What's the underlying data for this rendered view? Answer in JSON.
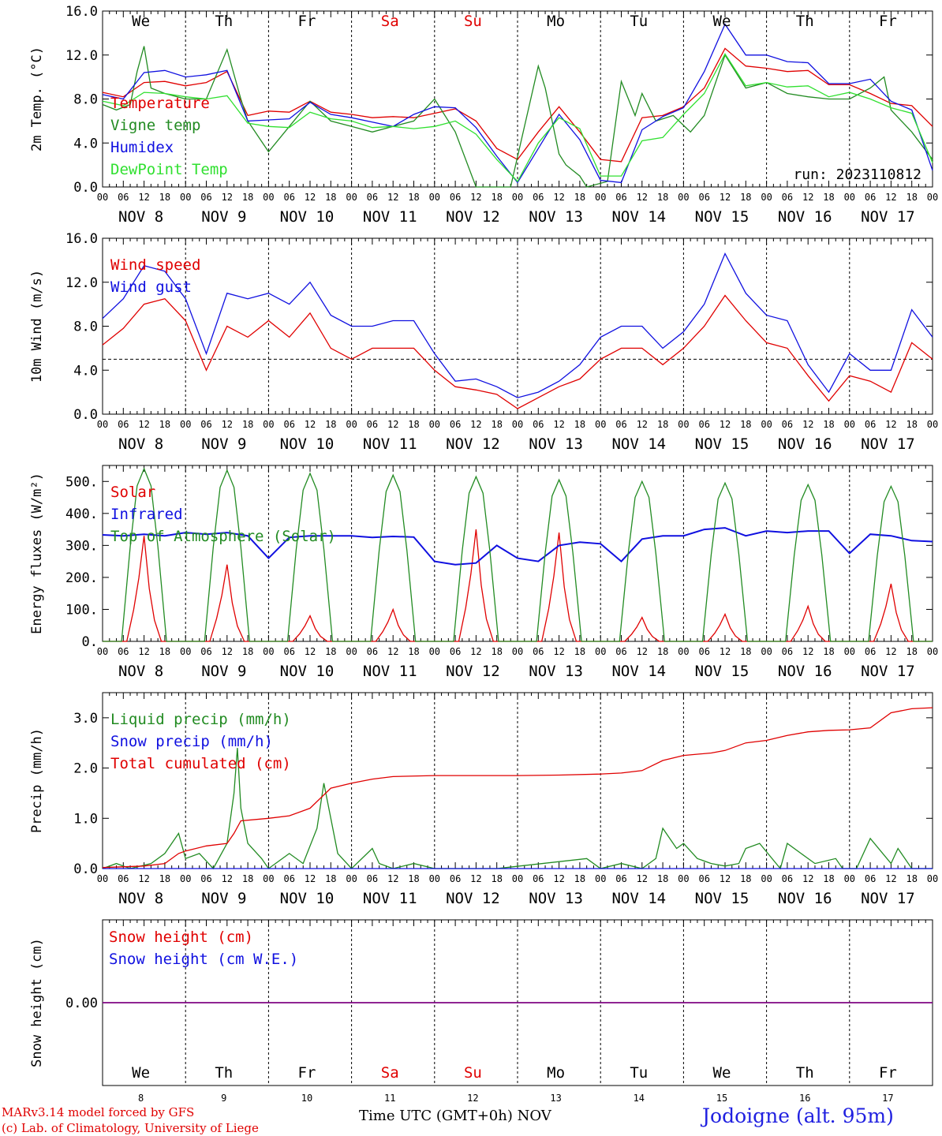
{
  "days": [
    {
      "name": "We",
      "date": "NOV  8",
      "num": "8",
      "weekend": false
    },
    {
      "name": "Th",
      "date": "NOV  9",
      "num": "9",
      "weekend": false
    },
    {
      "name": "Fr",
      "date": "NOV 10",
      "num": "10",
      "weekend": false
    },
    {
      "name": "Sa",
      "date": "NOV 11",
      "num": "11",
      "weekend": true
    },
    {
      "name": "Su",
      "date": "NOV 12",
      "num": "12",
      "weekend": true
    },
    {
      "name": "Mo",
      "date": "NOV 13",
      "num": "13",
      "weekend": false
    },
    {
      "name": "Tu",
      "date": "NOV 14",
      "num": "14",
      "weekend": false
    },
    {
      "name": "We",
      "date": "NOV 15",
      "num": "15",
      "weekend": false
    },
    {
      "name": "Th",
      "date": "NOV 16",
      "num": "16",
      "weekend": false
    },
    {
      "name": "Fr",
      "date": "NOV 17",
      "num": "17",
      "weekend": false
    }
  ],
  "hour_labels": [
    "00",
    "06",
    "12",
    "18"
  ],
  "run_label": "run: 2023110812",
  "footer": {
    "model": "MARv3.14 model forced by GFS",
    "credit": "(c) Lab. of Climatology, University of Liege",
    "xaxis": "Time UTC (GMT+0h)",
    "xaxis_unit": "NOV",
    "station": "Jodoigne (alt. 95m)"
  },
  "colors": {
    "red": "#e00000",
    "green": "#228b22",
    "blue": "#1010e0",
    "lightgreen": "#30e030",
    "purple": "#800080",
    "weekend": "#e00000"
  },
  "chart_data": [
    {
      "type": "line",
      "ylabel": "2m Temp. (°C)",
      "ylim": [
        0,
        16
      ],
      "yticks": [
        "0.0",
        "4.0",
        "8.0",
        "12.0",
        "16.0"
      ],
      "x_unit": "hours since NOV 8 00 UTC",
      "series": [
        {
          "name": "Temperature",
          "color": "red",
          "x": [
            0,
            6,
            12,
            18,
            24,
            30,
            36,
            42,
            48,
            54,
            60,
            66,
            72,
            78,
            84,
            90,
            96,
            102,
            108,
            114,
            120,
            126,
            132,
            138,
            144,
            150,
            156,
            162,
            168,
            174,
            180,
            186,
            192,
            198,
            204,
            210,
            216,
            222,
            228,
            234,
            240
          ],
          "values": [
            8.6,
            8.2,
            9.5,
            9.6,
            9.2,
            9.5,
            10.5,
            6.5,
            6.9,
            6.8,
            7.8,
            6.8,
            6.6,
            6.3,
            6.4,
            6.3,
            6.7,
            7.1,
            6.0,
            3.5,
            2.5,
            5.0,
            7.3,
            5.0,
            2.5,
            2.3,
            6.3,
            6.5,
            7.3,
            9.0,
            12.6,
            11.0,
            10.8,
            10.5,
            10.6,
            9.3,
            9.3,
            8.5,
            7.6,
            7.4,
            5.5
          ]
        },
        {
          "name": "Vigne temp",
          "color": "green",
          "x": [
            0,
            4,
            8,
            10,
            12,
            14,
            18,
            24,
            30,
            36,
            40,
            42,
            48,
            54,
            60,
            66,
            72,
            78,
            84,
            90,
            96,
            102,
            108,
            114,
            118,
            126,
            128,
            132,
            134,
            138,
            140,
            146,
            150,
            154,
            156,
            160,
            165,
            170,
            174,
            180,
            186,
            192,
            198,
            204,
            210,
            216,
            222,
            226,
            228,
            234,
            240
          ],
          "values": [
            7.5,
            7.0,
            7.5,
            10.5,
            12.8,
            9.0,
            8.5,
            8.0,
            8.0,
            12.5,
            8.0,
            6.0,
            3.2,
            5.5,
            7.8,
            6.0,
            5.5,
            5.0,
            5.5,
            6.0,
            8.0,
            5.0,
            0.0,
            0.0,
            0.0,
            11.0,
            9.0,
            3.0,
            2.0,
            1.0,
            0.0,
            0.5,
            9.6,
            6.5,
            8.5,
            6.0,
            6.5,
            5.0,
            6.5,
            12.0,
            9.0,
            9.5,
            8.5,
            8.2,
            8.0,
            8.0,
            9.0,
            10.0,
            7.0,
            5.0,
            2.5
          ]
        },
        {
          "name": "Humidex",
          "color": "blue",
          "x": [
            0,
            6,
            12,
            18,
            24,
            30,
            36,
            42,
            48,
            54,
            60,
            66,
            72,
            78,
            84,
            90,
            96,
            102,
            108,
            114,
            120,
            126,
            132,
            138,
            144,
            150,
            156,
            162,
            168,
            174,
            180,
            186,
            192,
            198,
            204,
            210,
            216,
            222,
            228,
            234,
            240
          ],
          "values": [
            8.4,
            8.0,
            10.4,
            10.6,
            10.0,
            10.2,
            10.6,
            6.0,
            6.1,
            6.2,
            7.7,
            6.6,
            6.3,
            5.9,
            5.5,
            6.6,
            7.3,
            7.2,
            5.4,
            2.8,
            0.4,
            3.5,
            6.6,
            4.3,
            0.6,
            0.4,
            5.2,
            6.4,
            7.2,
            10.5,
            14.8,
            12.0,
            12.0,
            11.4,
            11.3,
            9.4,
            9.4,
            9.8,
            7.8,
            7.0,
            1.5
          ]
        },
        {
          "name": "DewPoint Temp",
          "color": "lightgreen",
          "x": [
            0,
            6,
            12,
            18,
            24,
            30,
            36,
            42,
            48,
            54,
            60,
            66,
            72,
            78,
            84,
            90,
            96,
            102,
            108,
            114,
            120,
            126,
            132,
            138,
            144,
            150,
            156,
            162,
            168,
            174,
            180,
            186,
            192,
            198,
            204,
            210,
            216,
            222,
            228,
            234,
            240
          ],
          "values": [
            7.8,
            7.4,
            8.6,
            8.5,
            8.2,
            8.0,
            8.3,
            5.8,
            5.5,
            5.4,
            6.8,
            6.2,
            6.0,
            5.4,
            5.5,
            5.3,
            5.5,
            6.0,
            4.8,
            2.5,
            0.5,
            4.0,
            6.3,
            5.3,
            1.0,
            1.0,
            4.2,
            4.5,
            6.6,
            8.5,
            12.1,
            9.2,
            9.5,
            9.1,
            9.2,
            8.2,
            8.6,
            8.0,
            7.2,
            6.7,
            2.2
          ]
        }
      ]
    },
    {
      "type": "line",
      "ylabel": "10m Wind (m/s)",
      "ylim": [
        0,
        16
      ],
      "yticks": [
        "0.0",
        "4.0",
        "8.0",
        "12.0",
        "16.0"
      ],
      "reference_line": 5.0,
      "series": [
        {
          "name": "Wind speed",
          "color": "red",
          "x": [
            0,
            6,
            12,
            18,
            24,
            30,
            36,
            42,
            48,
            54,
            60,
            66,
            72,
            78,
            84,
            90,
            96,
            102,
            108,
            114,
            120,
            126,
            132,
            138,
            144,
            150,
            156,
            162,
            168,
            174,
            180,
            186,
            192,
            198,
            204,
            210,
            216,
            222,
            228,
            234,
            240
          ],
          "values": [
            6.3,
            7.8,
            10.0,
            10.5,
            8.5,
            4.0,
            8.0,
            7.0,
            8.5,
            7.0,
            9.2,
            6.0,
            5.0,
            6.0,
            6.0,
            6.0,
            4.0,
            2.5,
            2.2,
            1.8,
            0.5,
            1.5,
            2.5,
            3.2,
            5.0,
            6.0,
            6.0,
            4.5,
            6.0,
            8.0,
            10.8,
            8.5,
            6.5,
            6.0,
            3.5,
            1.2,
            3.5,
            3.0,
            2.0,
            6.5,
            5.0
          ]
        },
        {
          "name": "Wind gust",
          "color": "blue",
          "x": [
            0,
            6,
            12,
            18,
            24,
            30,
            36,
            42,
            48,
            54,
            60,
            66,
            72,
            78,
            84,
            90,
            96,
            102,
            108,
            114,
            120,
            126,
            132,
            138,
            144,
            150,
            156,
            162,
            168,
            174,
            180,
            186,
            192,
            198,
            204,
            210,
            216,
            222,
            228,
            234,
            240
          ],
          "values": [
            8.7,
            10.5,
            13.5,
            13.0,
            10.5,
            5.5,
            11.0,
            10.5,
            11.0,
            10.0,
            12.0,
            9.0,
            8.0,
            8.0,
            8.5,
            8.5,
            5.5,
            3.0,
            3.2,
            2.5,
            1.5,
            2.0,
            3.0,
            4.5,
            7.0,
            8.0,
            8.0,
            6.0,
            7.5,
            10.0,
            14.6,
            11.0,
            9.0,
            8.5,
            4.5,
            2.0,
            5.5,
            4.0,
            4.0,
            9.5,
            7.0
          ]
        }
      ]
    },
    {
      "type": "line",
      "ylabel": "Energy fluxes (W/m²)",
      "ylim": [
        0,
        550
      ],
      "yticks": [
        "0.",
        "100.",
        "200.",
        "300.",
        "400.",
        "500."
      ],
      "series": [
        {
          "name": "Solar",
          "color": "red",
          "daily_peaks": [
            330,
            240,
            80,
            100,
            350,
            340,
            75,
            85,
            110,
            180
          ]
        },
        {
          "name": "Infrared",
          "color": "blue",
          "x": [
            0,
            6,
            12,
            18,
            24,
            30,
            36,
            42,
            48,
            54,
            60,
            66,
            72,
            78,
            84,
            90,
            96,
            102,
            108,
            114,
            120,
            126,
            132,
            138,
            144,
            150,
            156,
            162,
            168,
            174,
            180,
            186,
            192,
            198,
            204,
            210,
            216,
            222,
            228,
            234,
            240
          ],
          "values": [
            333,
            330,
            335,
            330,
            340,
            335,
            340,
            330,
            260,
            325,
            330,
            330,
            330,
            325,
            328,
            326,
            250,
            240,
            245,
            300,
            260,
            250,
            300,
            310,
            305,
            250,
            320,
            330,
            330,
            350,
            355,
            330,
            345,
            340,
            345,
            345,
            275,
            335,
            330,
            315,
            312
          ]
        },
        {
          "name": "Top of Atmosphere (Solar)",
          "color": "green",
          "daily_peaks": [
            540,
            535,
            525,
            520,
            515,
            505,
            500,
            495,
            490,
            485
          ]
        }
      ]
    },
    {
      "type": "line",
      "ylabel": "Precip (mm/h)",
      "ylim": [
        0,
        3.5
      ],
      "yticks": [
        "0.0",
        "1.0",
        "2.0",
        "3.0"
      ],
      "series": [
        {
          "name": "Liquid precip (mm/h)",
          "color": "green",
          "x": [
            0,
            4,
            8,
            14,
            18,
            22,
            24,
            28,
            32,
            36,
            38,
            39,
            40,
            42,
            46,
            48,
            54,
            58,
            62,
            64,
            66,
            68,
            72,
            78,
            80,
            84,
            90,
            96,
            114,
            140,
            144,
            150,
            156,
            160,
            162,
            166,
            168,
            172,
            176,
            180,
            184,
            186,
            190,
            196,
            198,
            202,
            206,
            212,
            214,
            218,
            222,
            228,
            230,
            234,
            240
          ],
          "values": [
            0.0,
            0.1,
            0.0,
            0.1,
            0.3,
            0.7,
            0.2,
            0.3,
            0.0,
            0.5,
            1.5,
            2.4,
            1.2,
            0.5,
            0.2,
            0.0,
            0.3,
            0.1,
            0.8,
            1.7,
            1.0,
            0.3,
            0.0,
            0.4,
            0.1,
            0.0,
            0.1,
            0.0,
            0.0,
            0.2,
            0.0,
            0.1,
            0.0,
            0.2,
            0.8,
            0.4,
            0.5,
            0.2,
            0.1,
            0.05,
            0.1,
            0.4,
            0.5,
            0.0,
            0.5,
            0.3,
            0.1,
            0.2,
            0.0,
            0.0,
            0.6,
            0.1,
            0.4,
            0.0,
            0.0
          ]
        },
        {
          "name": "Snow precip (mm/h)",
          "color": "blue",
          "x": [
            0,
            240
          ],
          "values": [
            0,
            0
          ]
        },
        {
          "name": "Total cumulated (cm)",
          "color": "red",
          "x": [
            0,
            12,
            18,
            22,
            24,
            30,
            36,
            38,
            40,
            48,
            54,
            60,
            66,
            72,
            78,
            84,
            96,
            108,
            120,
            132,
            144,
            150,
            156,
            162,
            168,
            176,
            180,
            186,
            192,
            198,
            204,
            210,
            216,
            222,
            228,
            234,
            240
          ],
          "values": [
            0.02,
            0.05,
            0.1,
            0.3,
            0.35,
            0.45,
            0.5,
            0.7,
            0.95,
            1.0,
            1.05,
            1.2,
            1.6,
            1.7,
            1.78,
            1.83,
            1.85,
            1.85,
            1.85,
            1.86,
            1.88,
            1.9,
            1.95,
            2.15,
            2.25,
            2.3,
            2.35,
            2.5,
            2.55,
            2.65,
            2.72,
            2.75,
            2.76,
            2.8,
            3.1,
            3.18,
            3.2
          ]
        }
      ]
    },
    {
      "type": "line",
      "ylabel": "Snow height (cm)",
      "yticks": [
        "0.00"
      ],
      "series": [
        {
          "name": "Snow height (cm)",
          "color": "red",
          "x": [
            0,
            240
          ],
          "values": [
            0,
            0
          ]
        },
        {
          "name": "Snow height (cm W.E.)",
          "color": "blue",
          "x": [
            0,
            240
          ],
          "values": [
            0,
            0
          ]
        }
      ]
    }
  ]
}
